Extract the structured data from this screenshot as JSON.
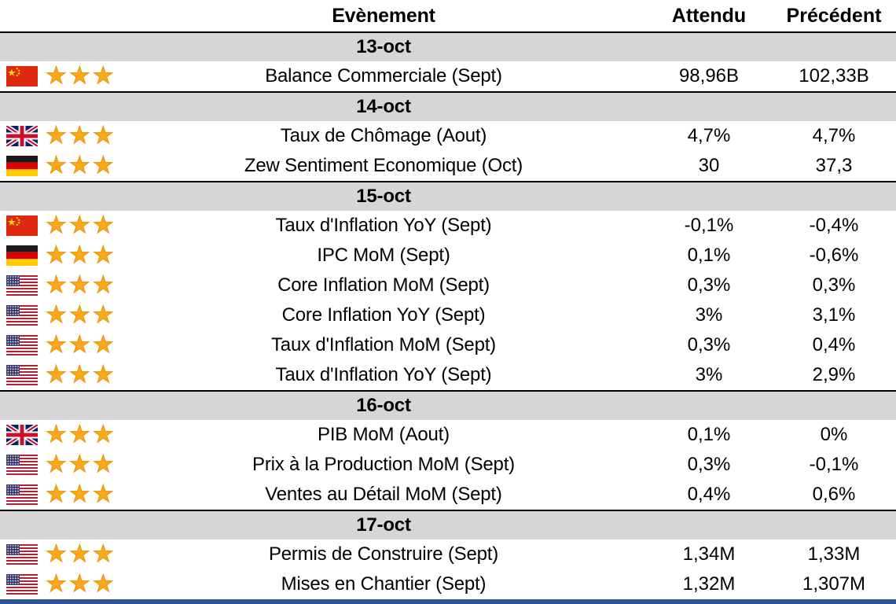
{
  "header": {
    "event": "Evènement",
    "expected": "Attendu",
    "previous": "Précédent"
  },
  "icons": {
    "star": "★"
  },
  "colors": {
    "date_row_bg": "#D6D6D6",
    "star": "#F9A91C",
    "star_outline": "#EE8F00",
    "divider": "#000000",
    "text": "#000000",
    "bottom_bar": "#2F5496"
  },
  "sections": [
    {
      "date": "13-oct",
      "rows": [
        {
          "country": "china",
          "stars": 3,
          "event": "Balance Commerciale (Sept)",
          "expected": "98,96B",
          "previous": "102,33B"
        }
      ]
    },
    {
      "date": "14-oct",
      "rows": [
        {
          "country": "uk",
          "stars": 3,
          "event": "Taux de Chômage (Aout)",
          "expected": "4,7%",
          "previous": "4,7%"
        },
        {
          "country": "germany",
          "stars": 3,
          "event": "Zew Sentiment Economique (Oct)",
          "expected": "30",
          "previous": "37,3"
        }
      ]
    },
    {
      "date": "15-oct",
      "rows": [
        {
          "country": "china",
          "stars": 3,
          "event": "Taux d'Inflation YoY (Sept)",
          "expected": "-0,1%",
          "previous": "-0,4%"
        },
        {
          "country": "germany",
          "stars": 3,
          "event": "IPC MoM (Sept)",
          "expected": "0,1%",
          "previous": "-0,6%"
        },
        {
          "country": "usa",
          "stars": 3,
          "event": "Core Inflation MoM (Sept)",
          "expected": "0,3%",
          "previous": "0,3%"
        },
        {
          "country": "usa",
          "stars": 3,
          "event": "Core Inflation YoY (Sept)",
          "expected": "3%",
          "previous": "3,1%"
        },
        {
          "country": "usa",
          "stars": 3,
          "event": "Taux d'Inflation MoM (Sept)",
          "expected": "0,3%",
          "previous": "0,4%"
        },
        {
          "country": "usa",
          "stars": 3,
          "event": "Taux d'Inflation YoY (Sept)",
          "expected": "3%",
          "previous": "2,9%"
        }
      ]
    },
    {
      "date": "16-oct",
      "rows": [
        {
          "country": "uk",
          "stars": 3,
          "event": "PIB MoM (Aout)",
          "expected": "0,1%",
          "previous": "0%"
        },
        {
          "country": "usa",
          "stars": 3,
          "event": "Prix à la Production MoM (Sept)",
          "expected": "0,3%",
          "previous": "-0,1%"
        },
        {
          "country": "usa",
          "stars": 3,
          "event": "Ventes au Détail MoM (Sept)",
          "expected": "0,4%",
          "previous": "0,6%"
        }
      ]
    },
    {
      "date": "17-oct",
      "rows": [
        {
          "country": "usa",
          "stars": 3,
          "event": "Permis de Construire (Sept)",
          "expected": "1,34M",
          "previous": "1,33M"
        },
        {
          "country": "usa",
          "stars": 3,
          "event": "Mises en Chantier (Sept)",
          "expected": "1,32M",
          "previous": "1,307M"
        }
      ]
    }
  ]
}
